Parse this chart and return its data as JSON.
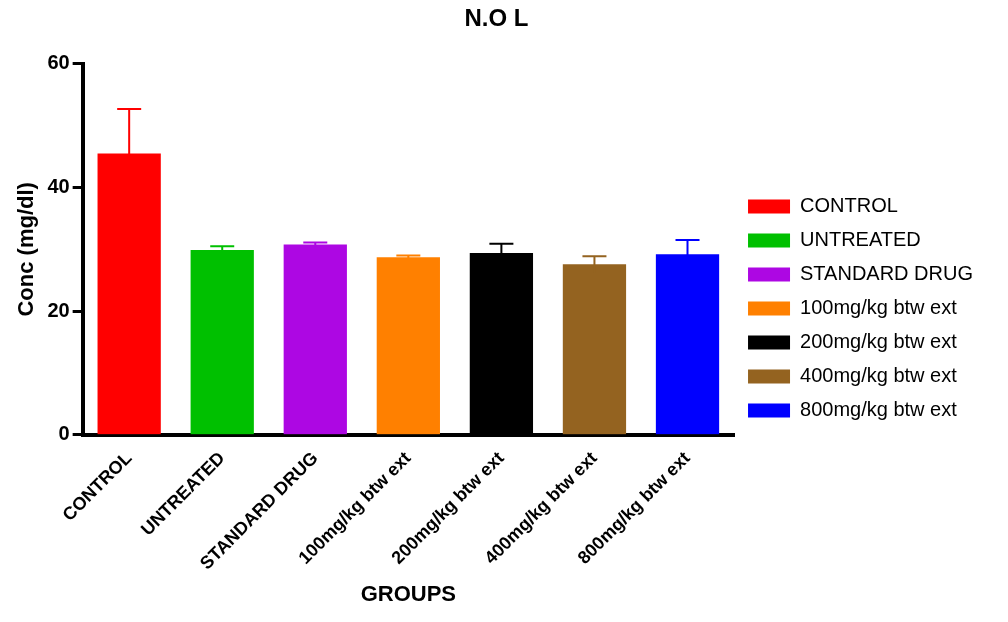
{
  "chart_data": {
    "type": "bar",
    "title": "N.O L",
    "xlabel": "GROUPS",
    "ylabel": "Conc (mg/dl)",
    "categories": [
      "CONTROL",
      "UNTREATED",
      "STANDARD DRUG",
      "100mg/kg btw ext",
      "200mg/kg btw ext",
      "400mg/kg btw ext",
      "800mg/kg btw ext"
    ],
    "series": [
      {
        "name": "CONTROL",
        "color": "#ff0000",
        "values": [
          45.5,
          null,
          null,
          null,
          null,
          null,
          null
        ],
        "errors": [
          7.2,
          null,
          null,
          null,
          null,
          null,
          null
        ]
      },
      {
        "name": "UNTREATED",
        "color": "#00c000",
        "values": [
          null,
          29.9,
          null,
          null,
          null,
          null,
          null
        ],
        "errors": [
          null,
          0.6,
          null,
          null,
          null,
          null,
          null
        ]
      },
      {
        "name": "STANDARD DRUG",
        "color": "#ad07e3",
        "values": [
          null,
          null,
          30.8,
          null,
          null,
          null,
          null
        ],
        "errors": [
          null,
          null,
          0.3,
          null,
          null,
          null,
          null
        ]
      },
      {
        "name": "100mg/kg btw ext",
        "color": "#ff8000",
        "values": [
          null,
          null,
          null,
          28.7,
          null,
          null,
          null
        ],
        "errors": [
          null,
          null,
          null,
          0.3,
          null,
          null,
          null
        ]
      },
      {
        "name": "200mg/kg btw ext",
        "color": "#000000",
        "values": [
          null,
          null,
          null,
          null,
          29.4,
          null,
          null
        ],
        "errors": [
          null,
          null,
          null,
          null,
          1.5,
          null,
          null
        ]
      },
      {
        "name": "400mg/kg btw ext",
        "color": "#946320",
        "values": [
          null,
          null,
          null,
          null,
          null,
          27.6,
          null
        ],
        "errors": [
          null,
          null,
          null,
          null,
          null,
          1.3,
          null
        ]
      },
      {
        "name": "800mg/kg btw ext",
        "color": "#0000ff",
        "values": [
          null,
          null,
          null,
          null,
          null,
          null,
          29.2
        ],
        "errors": [
          null,
          null,
          null,
          null,
          null,
          null,
          2.3
        ]
      }
    ],
    "ylim": [
      0,
      60
    ],
    "yticks": [
      0,
      20,
      40,
      60
    ],
    "grid": false,
    "legend": "right"
  }
}
